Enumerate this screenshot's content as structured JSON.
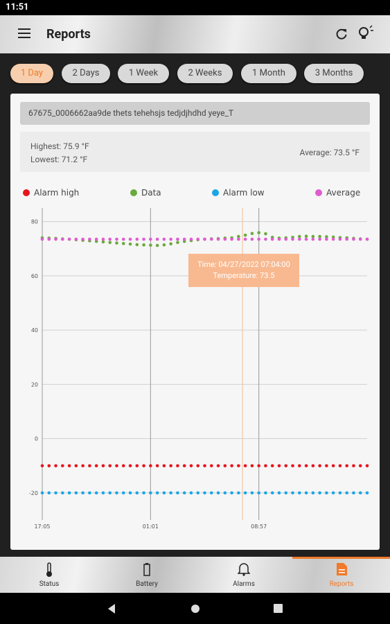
{
  "status_bar": {
    "time": "11:51"
  },
  "app_bar": {
    "title": "Reports"
  },
  "range_chips": [
    "1 Day",
    "2 Days",
    "1 Week",
    "2 Weeks",
    "1 Month",
    "3 Months"
  ],
  "device": {
    "name": "67675_0006662aa9de thets tehehsjs tedjdjhdhd yeye_T"
  },
  "stats": {
    "highest": "Highest: 75.9 °F",
    "lowest": "Lowest: 71.2 °F",
    "average": "Average: 73.5 °F"
  },
  "chart_data": {
    "type": "line",
    "categories": [
      "17:05",
      null,
      null,
      null,
      null,
      null,
      null,
      null,
      null,
      null,
      null,
      null,
      null,
      null,
      null,
      null,
      "01:01",
      null,
      null,
      null,
      null,
      null,
      null,
      null,
      null,
      null,
      null,
      null,
      null,
      null,
      null,
      null,
      "08:57",
      null,
      null,
      null,
      null,
      null,
      null,
      null,
      null,
      null,
      null,
      null,
      null,
      null,
      null,
      null,
      null
    ],
    "series": [
      {
        "name": "Alarm high",
        "color": "#e8141c",
        "values": [
          -10,
          -10,
          -10,
          -10,
          -10,
          -10,
          -10,
          -10,
          -10,
          -10,
          -10,
          -10,
          -10,
          -10,
          -10,
          -10,
          -10,
          -10,
          -10,
          -10,
          -10,
          -10,
          -10,
          -10,
          -10,
          -10,
          -10,
          -10,
          -10,
          -10,
          -10,
          -10,
          -10,
          -10,
          -10,
          -10,
          -10,
          -10,
          -10,
          -10,
          -10,
          -10,
          -10,
          -10,
          -10,
          -10,
          -10,
          -10,
          -10
        ]
      },
      {
        "name": "Data",
        "color": "#6aaa3c",
        "values": [
          74.0,
          73.9,
          73.8,
          73.6,
          73.5,
          73.3,
          73.1,
          72.9,
          72.7,
          72.5,
          72.3,
          72.1,
          71.9,
          71.7,
          71.5,
          71.4,
          71.3,
          71.2,
          71.4,
          71.8,
          72.3,
          72.7,
          73.0,
          73.3,
          73.5,
          73.6,
          73.7,
          73.9,
          74.0,
          74.5,
          75.0,
          75.6,
          75.9,
          75.5,
          74.2,
          73.9,
          74.0,
          74.2,
          74.5,
          74.6,
          74.5,
          74.5,
          74.4,
          74.3,
          74.1,
          74.0,
          73.8,
          73.6,
          73.5
        ]
      },
      {
        "name": "Alarm low",
        "color": "#1aa6e6",
        "values": [
          -20,
          -20,
          -20,
          -20,
          -20,
          -20,
          -20,
          -20,
          -20,
          -20,
          -20,
          -20,
          -20,
          -20,
          -20,
          -20,
          -20,
          -20,
          -20,
          -20,
          -20,
          -20,
          -20,
          -20,
          -20,
          -20,
          -20,
          -20,
          -20,
          -20,
          -20,
          -20,
          -20,
          -20,
          -20,
          -20,
          -20,
          -20,
          -20,
          -20,
          -20,
          -20,
          -20,
          -20,
          -20,
          -20,
          -20,
          -20,
          -20
        ]
      },
      {
        "name": "Average",
        "color": "#e05cd0",
        "values": [
          73.5,
          73.5,
          73.5,
          73.5,
          73.5,
          73.5,
          73.5,
          73.5,
          73.5,
          73.5,
          73.5,
          73.5,
          73.5,
          73.5,
          73.5,
          73.5,
          73.5,
          73.5,
          73.5,
          73.5,
          73.5,
          73.5,
          73.5,
          73.5,
          73.5,
          73.5,
          73.5,
          73.5,
          73.5,
          73.5,
          73.5,
          73.5,
          73.5,
          73.5,
          73.5,
          73.5,
          73.5,
          73.5,
          73.5,
          73.5,
          73.5,
          73.5,
          73.5,
          73.5,
          73.5,
          73.5,
          73.5,
          73.5,
          73.5
        ]
      }
    ],
    "ylim": [
      -30,
      85
    ],
    "yticks": [
      -20,
      0,
      20,
      40,
      60,
      80
    ],
    "grid": true,
    "tooltip": {
      "time": "Time: 04/27/2022 07:04:00",
      "temperature": "Temperature: 73.5"
    }
  },
  "bottom_nav": {
    "items": [
      "Status",
      "Battery",
      "Alarms",
      "Reports"
    ]
  }
}
